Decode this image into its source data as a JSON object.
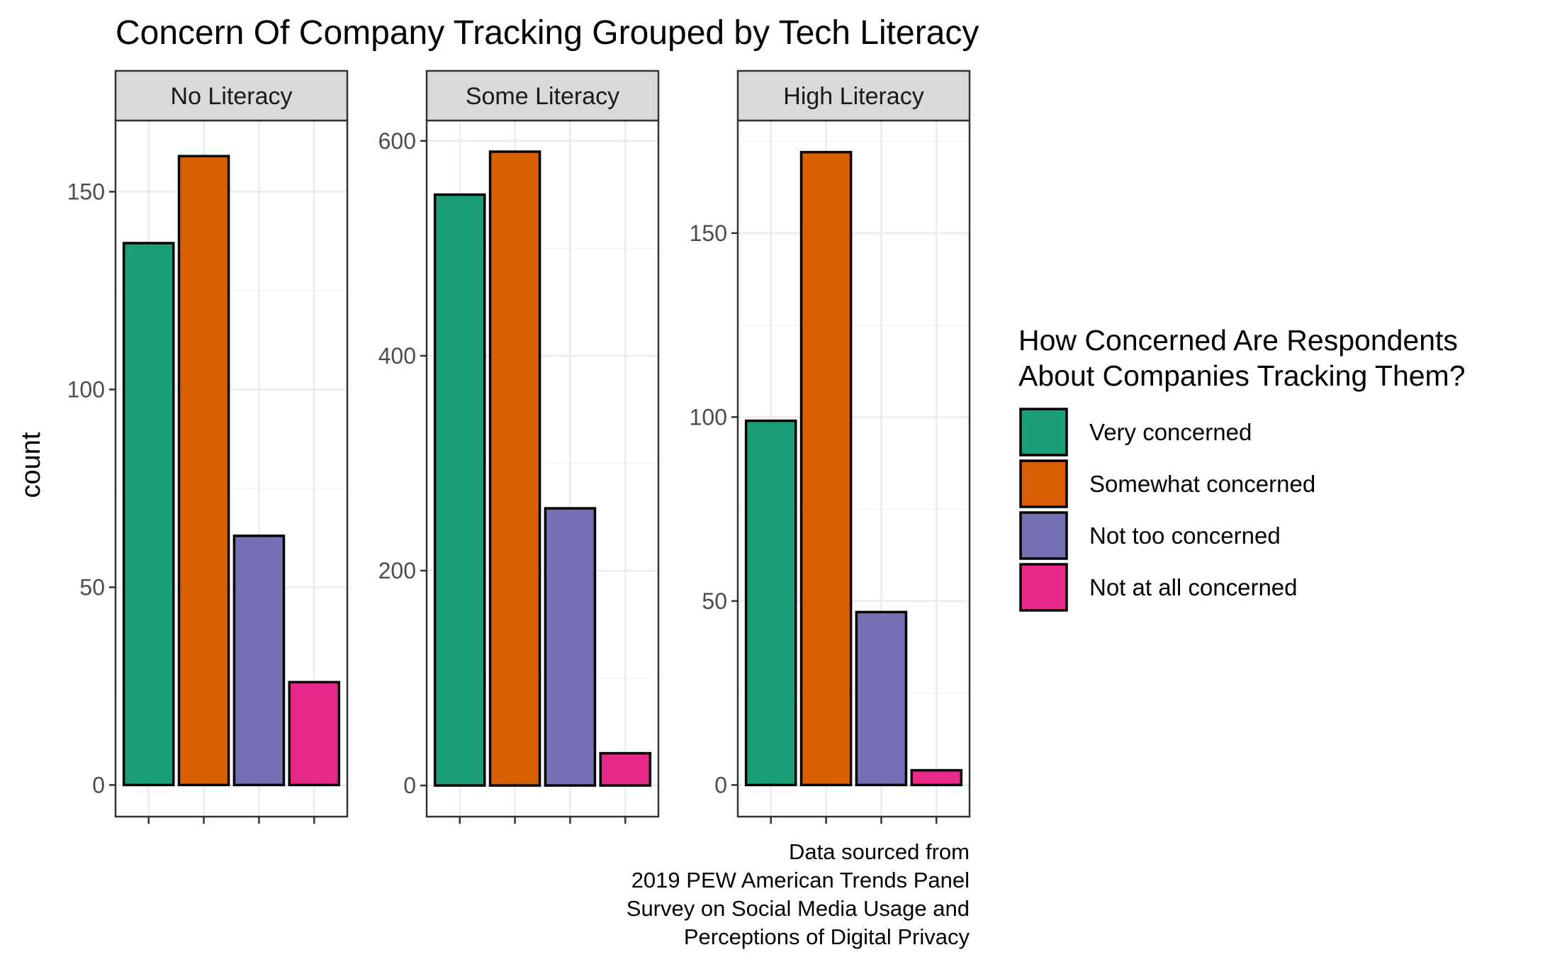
{
  "chart_data": {
    "type": "bar",
    "title": "Concern Of Company Tracking Grouped by Tech Literacy",
    "ylabel": "count",
    "categories": [
      "Very concerned",
      "Somewhat concerned",
      "Not too concerned",
      "Not at all concerned"
    ],
    "colors": [
      "#1B9E77",
      "#D95F02",
      "#7570B3",
      "#E7298A"
    ],
    "legend": {
      "title": [
        "How Concerned Are Respondents",
        "About Companies Tracking Them?"
      ],
      "placement": "right"
    },
    "caption": [
      "Data sourced from",
      "2019 PEW American Trends Panel",
      "Survey on Social Media Usage and",
      "Perceptions of Digital Privacy"
    ],
    "grid": true,
    "panels": [
      {
        "name": "No Literacy",
        "values": [
          137,
          159,
          63,
          26
        ],
        "ylim": [
          -8,
          168
        ],
        "yticks": [
          0,
          50,
          100,
          150
        ]
      },
      {
        "name": "Some Literacy",
        "values": [
          550,
          590,
          258,
          30
        ],
        "ylim": [
          -29,
          619
        ],
        "yticks": [
          0,
          200,
          400,
          600
        ]
      },
      {
        "name": "High Literacy",
        "values": [
          99,
          172,
          47,
          4
        ],
        "ylim": [
          -8.6,
          180.6
        ],
        "yticks": [
          0,
          50,
          100,
          150
        ]
      }
    ]
  }
}
